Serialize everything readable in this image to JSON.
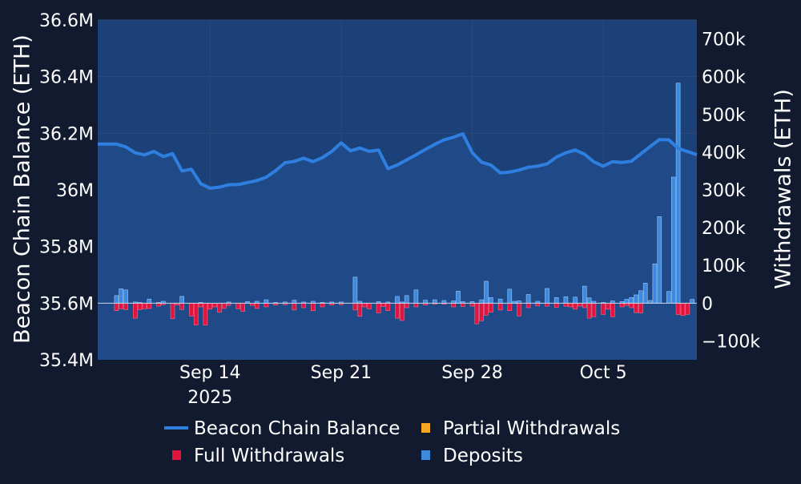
{
  "theme": {
    "background": "#111a2e",
    "plot_fill": "#1c4178",
    "gridline": "#2c4a78",
    "balance_color": "#2e7fe0",
    "full_withdrawals_color": "#e0153f",
    "partial_withdrawals_color": "#f5a623",
    "deposits_color": "#3c8ae0"
  },
  "chart_data": {
    "type": "bar",
    "grid": true,
    "legend_placement": "bottom",
    "legend": [
      {
        "key": "balance",
        "label": "Beacon Chain Balance",
        "symbol": "line"
      },
      {
        "key": "partial",
        "label": "Partial Withdrawals",
        "symbol": "square"
      },
      {
        "key": "full",
        "label": "Full Withdrawals",
        "symbol": "square"
      },
      {
        "key": "deposits",
        "label": "Deposits",
        "symbol": "square"
      }
    ],
    "x_axis": {
      "range": [
        "2025-09-08",
        "2025-10-10"
      ],
      "ticks": [
        {
          "date": "2025-09-14",
          "label": "Sep 14",
          "sublabel": "2025"
        },
        {
          "date": "2025-09-21",
          "label": "Sep 21",
          "sublabel": ""
        },
        {
          "date": "2025-09-28",
          "label": "Sep 28",
          "sublabel": ""
        },
        {
          "date": "2025-10-05",
          "label": "Oct 5",
          "sublabel": ""
        }
      ]
    },
    "y_left": {
      "title": "Beacon Chain Balance (ETH)",
      "range": [
        35400000,
        36600000
      ],
      "ticks": [
        {
          "value": 35400000,
          "label": "35.4M"
        },
        {
          "value": 35600000,
          "label": "35.6M"
        },
        {
          "value": 35800000,
          "label": "35.8M"
        },
        {
          "value": 36000000,
          "label": "36M"
        },
        {
          "value": 36200000,
          "label": "36.2M"
        },
        {
          "value": 36400000,
          "label": "36.4M"
        },
        {
          "value": 36600000,
          "label": "36.6M"
        }
      ]
    },
    "y_right": {
      "title": "Withdrawals (ETH)",
      "range": [
        -150000,
        750000
      ],
      "ticks": [
        {
          "value": -100000,
          "label": "−100k"
        },
        {
          "value": 0,
          "label": "0"
        },
        {
          "value": 100000,
          "label": "100k"
        },
        {
          "value": 200000,
          "label": "200k"
        },
        {
          "value": 300000,
          "label": "300k"
        },
        {
          "value": 400000,
          "label": "400k"
        },
        {
          "value": 500000,
          "label": "500k"
        },
        {
          "value": 600000,
          "label": "600k"
        },
        {
          "value": 700000,
          "label": "700k"
        }
      ]
    },
    "balance": {
      "name": "Beacon Chain Balance",
      "points": [
        [
          "2025-09-09 00:00",
          36162000
        ],
        [
          "2025-09-09 12:00",
          36152000
        ],
        [
          "2025-09-10 00:00",
          36131000
        ],
        [
          "2025-09-10 12:00",
          36124000
        ],
        [
          "2025-09-11 00:00",
          36136000
        ],
        [
          "2025-09-11 12:00",
          36118000
        ],
        [
          "2025-09-12 00:00",
          36128000
        ],
        [
          "2025-09-12 12:00",
          36067000
        ],
        [
          "2025-09-13 00:00",
          36073000
        ],
        [
          "2025-09-13 12:00",
          36022000
        ],
        [
          "2025-09-14 00:00",
          36006000
        ],
        [
          "2025-09-14 12:00",
          36010000
        ],
        [
          "2025-09-15 00:00",
          36018000
        ],
        [
          "2025-09-15 12:00",
          36019000
        ],
        [
          "2025-09-16 00:00",
          36026000
        ],
        [
          "2025-09-16 12:00",
          36033000
        ],
        [
          "2025-09-17 00:00",
          36045000
        ],
        [
          "2025-09-17 12:00",
          36068000
        ],
        [
          "2025-09-18 00:00",
          36096000
        ],
        [
          "2025-09-18 12:00",
          36101000
        ],
        [
          "2025-09-19 00:00",
          36112000
        ],
        [
          "2025-09-19 12:00",
          36100000
        ],
        [
          "2025-09-20 00:00",
          36114000
        ],
        [
          "2025-09-20 12:00",
          36136000
        ],
        [
          "2025-09-21 00:00",
          36166000
        ],
        [
          "2025-09-21 12:00",
          36138000
        ],
        [
          "2025-09-22 00:00",
          36148000
        ],
        [
          "2025-09-22 12:00",
          36136000
        ],
        [
          "2025-09-23 00:00",
          36141000
        ],
        [
          "2025-09-23 12:00",
          36075000
        ],
        [
          "2025-09-24 00:00",
          36088000
        ],
        [
          "2025-09-24 12:00",
          36106000
        ],
        [
          "2025-09-25 00:00",
          36124000
        ],
        [
          "2025-09-25 12:00",
          36143000
        ],
        [
          "2025-09-26 00:00",
          36161000
        ],
        [
          "2025-09-26 12:00",
          36177000
        ],
        [
          "2025-09-27 00:00",
          36186000
        ],
        [
          "2025-09-27 12:00",
          36198000
        ],
        [
          "2025-09-28 00:00",
          36132000
        ],
        [
          "2025-09-28 12:00",
          36098000
        ],
        [
          "2025-09-29 00:00",
          36088000
        ],
        [
          "2025-09-29 12:00",
          36060000
        ],
        [
          "2025-09-30 00:00",
          36063000
        ],
        [
          "2025-09-30 12:00",
          36070000
        ],
        [
          "2025-10-01 00:00",
          36080000
        ],
        [
          "2025-10-01 12:00",
          36084000
        ],
        [
          "2025-10-02 00:00",
          36092000
        ],
        [
          "2025-10-02 12:00",
          36116000
        ],
        [
          "2025-10-03 00:00",
          36131000
        ],
        [
          "2025-10-03 12:00",
          36141000
        ],
        [
          "2025-10-04 00:00",
          36126000
        ],
        [
          "2025-10-04 12:00",
          36099000
        ],
        [
          "2025-10-05 00:00",
          36084000
        ],
        [
          "2025-10-05 12:00",
          36100000
        ],
        [
          "2025-10-06 00:00",
          36097000
        ],
        [
          "2025-10-06 12:00",
          36101000
        ],
        [
          "2025-10-07 00:00",
          36127000
        ],
        [
          "2025-10-07 12:00",
          36153000
        ],
        [
          "2025-10-08 00:00",
          36178000
        ],
        [
          "2025-10-08 12:00",
          36177000
        ],
        [
          "2025-10-09 00:00",
          36147000
        ]
      ]
    },
    "deposits": {
      "name": "Deposits",
      "points": [
        [
          "2025-09-09 00:00",
          20000
        ],
        [
          "2025-09-09 06:00",
          38000
        ],
        [
          "2025-09-09 12:00",
          35000
        ],
        [
          "2025-09-10 00:00",
          3000
        ],
        [
          "2025-09-10 06:00",
          2000
        ],
        [
          "2025-09-10 18:00",
          11000
        ],
        [
          "2025-09-11 06:00",
          2000
        ],
        [
          "2025-09-11 12:00",
          5000
        ],
        [
          "2025-09-12 12:00",
          18000
        ],
        [
          "2025-09-13 12:00",
          2000
        ],
        [
          "2025-09-15 00:00",
          3000
        ],
        [
          "2025-09-16 00:00",
          4000
        ],
        [
          "2025-09-16 12:00",
          5000
        ],
        [
          "2025-09-17 00:00",
          9000
        ],
        [
          "2025-09-17 12:00",
          2000
        ],
        [
          "2025-09-18 00:00",
          3000
        ],
        [
          "2025-09-18 12:00",
          8000
        ],
        [
          "2025-09-19 00:00",
          3000
        ],
        [
          "2025-09-19 12:00",
          5000
        ],
        [
          "2025-09-20 00:00",
          2000
        ],
        [
          "2025-09-20 12:00",
          3000
        ],
        [
          "2025-09-21 00:00",
          3000
        ],
        [
          "2025-09-21 18:00",
          69000
        ],
        [
          "2025-09-22 00:00",
          5000
        ],
        [
          "2025-09-23 00:00",
          4000
        ],
        [
          "2025-09-23 12:00",
          3000
        ],
        [
          "2025-09-24 00:00",
          18000
        ],
        [
          "2025-09-24 06:00",
          3000
        ],
        [
          "2025-09-24 12:00",
          20000
        ],
        [
          "2025-09-25 00:00",
          35000
        ],
        [
          "2025-09-25 12:00",
          8000
        ],
        [
          "2025-09-26 00:00",
          9000
        ],
        [
          "2025-09-26 12:00",
          7000
        ],
        [
          "2025-09-27 00:00",
          6000
        ],
        [
          "2025-09-27 06:00",
          32000
        ],
        [
          "2025-09-27 12:00",
          4000
        ],
        [
          "2025-09-28 00:00",
          4000
        ],
        [
          "2025-09-28 12:00",
          9000
        ],
        [
          "2025-09-28 18:00",
          58000
        ],
        [
          "2025-09-29 00:00",
          15000
        ],
        [
          "2025-09-29 12:00",
          11000
        ],
        [
          "2025-09-30 00:00",
          37000
        ],
        [
          "2025-09-30 06:00",
          5000
        ],
        [
          "2025-09-30 12:00",
          6000
        ],
        [
          "2025-10-01 00:00",
          23000
        ],
        [
          "2025-10-01 12:00",
          5000
        ],
        [
          "2025-10-02 00:00",
          39000
        ],
        [
          "2025-10-02 12:00",
          15000
        ],
        [
          "2025-10-03 00:00",
          17000
        ],
        [
          "2025-10-03 12:00",
          16000
        ],
        [
          "2025-10-04 00:00",
          45000
        ],
        [
          "2025-10-04 06:00",
          14000
        ],
        [
          "2025-10-04 12:00",
          5000
        ],
        [
          "2025-10-05 00:00",
          2000
        ],
        [
          "2025-10-05 12:00",
          6000
        ],
        [
          "2025-10-06 00:00",
          4000
        ],
        [
          "2025-10-06 06:00",
          10000
        ],
        [
          "2025-10-06 12:00",
          15000
        ],
        [
          "2025-10-06 18:00",
          22000
        ],
        [
          "2025-10-07 00:00",
          33000
        ],
        [
          "2025-10-07 06:00",
          53000
        ],
        [
          "2025-10-07 12:00",
          7000
        ],
        [
          "2025-10-07 18:00",
          104000
        ],
        [
          "2025-10-08 00:00",
          229000
        ],
        [
          "2025-10-08 12:00",
          31000
        ],
        [
          "2025-10-08 18:00",
          334000
        ],
        [
          "2025-10-09 00:00",
          583000
        ],
        [
          "2025-10-09 18:00",
          10000
        ]
      ]
    },
    "full_withdrawals": {
      "name": "Full Withdrawals",
      "points": [
        [
          "2025-09-09 00:00",
          -20000
        ],
        [
          "2025-09-09 06:00",
          -15000
        ],
        [
          "2025-09-09 12:00",
          -17000
        ],
        [
          "2025-09-10 00:00",
          -40000
        ],
        [
          "2025-09-10 06:00",
          -17000
        ],
        [
          "2025-09-10 12:00",
          -15000
        ],
        [
          "2025-09-10 18:00",
          -14000
        ],
        [
          "2025-09-11 06:00",
          -8000
        ],
        [
          "2025-09-11 12:00",
          -4000
        ],
        [
          "2025-09-12 00:00",
          -41000
        ],
        [
          "2025-09-12 06:00",
          -5000
        ],
        [
          "2025-09-12 12:00",
          -17000
        ],
        [
          "2025-09-13 00:00",
          -34000
        ],
        [
          "2025-09-13 06:00",
          -58000
        ],
        [
          "2025-09-13 12:00",
          -10000
        ],
        [
          "2025-09-13 18:00",
          -58000
        ],
        [
          "2025-09-14 00:00",
          -16000
        ],
        [
          "2025-09-14 06:00",
          -10000
        ],
        [
          "2025-09-14 12:00",
          -24000
        ],
        [
          "2025-09-14 18:00",
          -14000
        ],
        [
          "2025-09-15 00:00",
          -6000
        ],
        [
          "2025-09-15 12:00",
          -15000
        ],
        [
          "2025-09-15 18:00",
          -22000
        ],
        [
          "2025-09-16 06:00",
          -6000
        ],
        [
          "2025-09-16 12:00",
          -14000
        ],
        [
          "2025-09-17 00:00",
          -10000
        ],
        [
          "2025-09-17 12:00",
          -5000
        ],
        [
          "2025-09-18 00:00",
          -4000
        ],
        [
          "2025-09-18 12:00",
          -18000
        ],
        [
          "2025-09-19 00:00",
          -12000
        ],
        [
          "2025-09-19 12:00",
          -20000
        ],
        [
          "2025-09-20 00:00",
          -10000
        ],
        [
          "2025-09-20 12:00",
          -5000
        ],
        [
          "2025-09-21 00:00",
          -4000
        ],
        [
          "2025-09-21 18:00",
          -18000
        ],
        [
          "2025-09-22 00:00",
          -35000
        ],
        [
          "2025-09-22 06:00",
          -10000
        ],
        [
          "2025-09-22 12:00",
          -15000
        ],
        [
          "2025-09-23 00:00",
          -26000
        ],
        [
          "2025-09-23 06:00",
          -9000
        ],
        [
          "2025-09-23 12:00",
          -20000
        ],
        [
          "2025-09-24 00:00",
          -40000
        ],
        [
          "2025-09-24 06:00",
          -46000
        ],
        [
          "2025-09-24 12:00",
          -12000
        ],
        [
          "2025-09-25 00:00",
          -10000
        ],
        [
          "2025-09-25 12:00",
          -5000
        ],
        [
          "2025-09-26 00:00",
          -3000
        ],
        [
          "2025-09-26 12:00",
          -3000
        ],
        [
          "2025-09-27 00:00",
          -10000
        ],
        [
          "2025-09-27 12:00",
          -9000
        ],
        [
          "2025-09-28 00:00",
          -8000
        ],
        [
          "2025-09-28 06:00",
          -55000
        ],
        [
          "2025-09-28 12:00",
          -47000
        ],
        [
          "2025-09-28 18:00",
          -32000
        ],
        [
          "2025-09-29 00:00",
          -24000
        ],
        [
          "2025-09-29 12:00",
          -18000
        ],
        [
          "2025-09-30 00:00",
          -20000
        ],
        [
          "2025-09-30 12:00",
          -34000
        ],
        [
          "2025-10-01 00:00",
          -12000
        ],
        [
          "2025-10-01 12:00",
          -7000
        ],
        [
          "2025-10-02 00:00",
          -8000
        ],
        [
          "2025-10-02 12:00",
          -11000
        ],
        [
          "2025-10-03 00:00",
          -8000
        ],
        [
          "2025-10-03 06:00",
          -10000
        ],
        [
          "2025-10-03 12:00",
          -16000
        ],
        [
          "2025-10-03 18:00",
          -8000
        ],
        [
          "2025-10-04 00:00",
          -12000
        ],
        [
          "2025-10-04 06:00",
          -40000
        ],
        [
          "2025-10-04 12:00",
          -36000
        ],
        [
          "2025-10-05 00:00",
          -30000
        ],
        [
          "2025-10-05 06:00",
          -16000
        ],
        [
          "2025-10-05 12:00",
          -36000
        ],
        [
          "2025-10-06 00:00",
          -10000
        ],
        [
          "2025-10-06 06:00",
          -6000
        ],
        [
          "2025-10-06 12:00",
          -12000
        ],
        [
          "2025-10-06 18:00",
          -25000
        ],
        [
          "2025-10-07 00:00",
          -26000
        ],
        [
          "2025-10-09 00:00",
          -30000
        ],
        [
          "2025-10-09 06:00",
          -33000
        ],
        [
          "2025-10-09 12:00",
          -30000
        ]
      ]
    },
    "partial_withdrawals": {
      "name": "Partial Withdrawals",
      "points": []
    }
  }
}
